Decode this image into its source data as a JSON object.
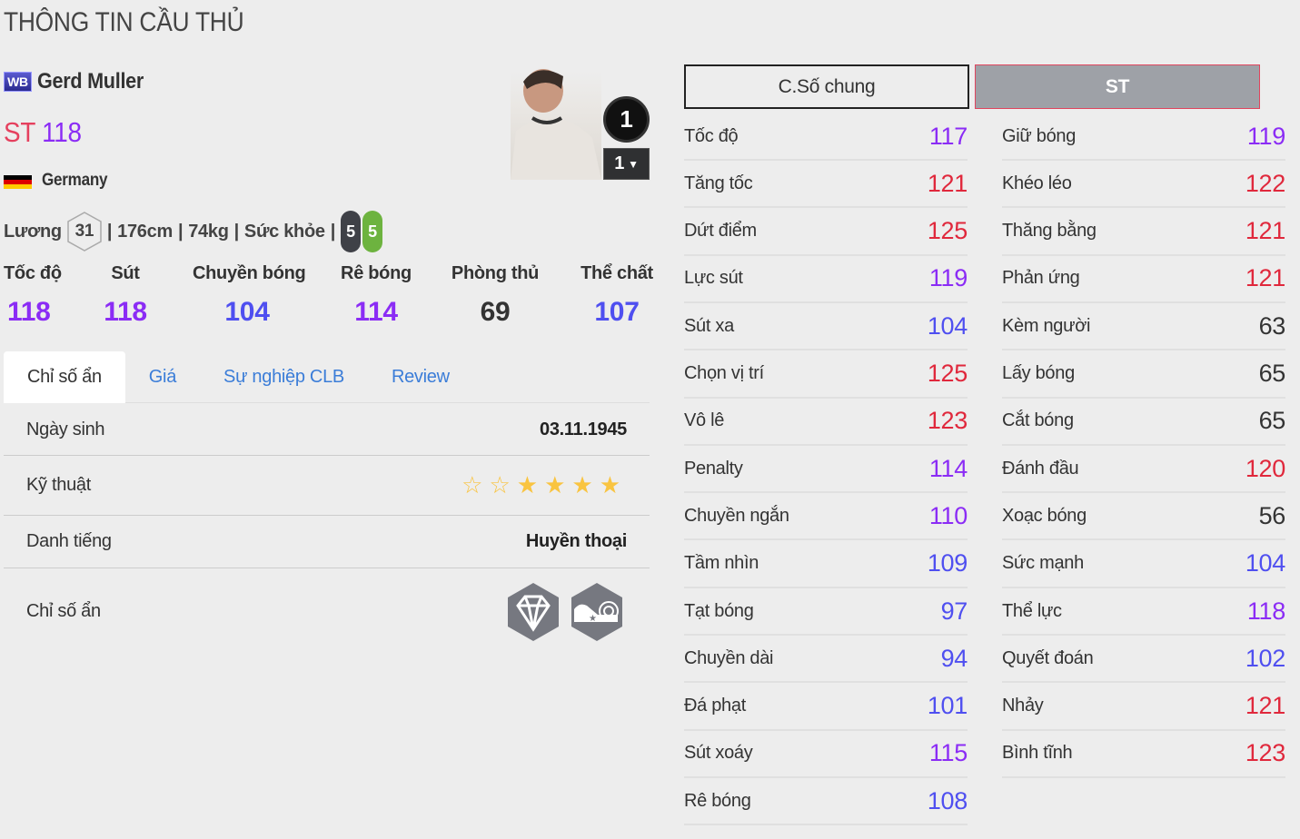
{
  "page_title": "THÔNG TIN CẦU THỦ",
  "player": {
    "season_badge": "WB",
    "name": "Gerd Muller",
    "position": "ST",
    "ovr": "118",
    "nation": "Germany",
    "salary_label": "Lương",
    "salary": "31",
    "height": "176cm",
    "weight": "74kg",
    "fitness_label": "Sức khỏe",
    "left_foot": "5",
    "right_foot": "5",
    "upgrade_level": "1",
    "level_select": "1"
  },
  "summary": [
    {
      "label": "Tốc độ",
      "value": "118",
      "color": "#8b2cf5"
    },
    {
      "label": "Sút",
      "value": "118",
      "color": "#8b2cf5"
    },
    {
      "label": "Chuyền bóng",
      "value": "104",
      "color": "#4f4ff0"
    },
    {
      "label": "Rê bóng",
      "value": "114",
      "color": "#8b2cf5"
    },
    {
      "label": "Phòng thủ",
      "value": "69",
      "color": "#333333"
    },
    {
      "label": "Thể chất",
      "value": "107",
      "color": "#4f4ff0"
    }
  ],
  "tabs": [
    {
      "label": "Chỉ số ẩn",
      "active": true
    },
    {
      "label": "Giá"
    },
    {
      "label": "Sự nghiệp CLB"
    },
    {
      "label": "Review"
    }
  ],
  "info": {
    "birth_label": "Ngày sinh",
    "birth": "03.11.1945",
    "skill_label": "Kỹ thuật",
    "skill_stars": 4,
    "skill_stars_max": 6,
    "fame_label": "Danh tiếng",
    "fame": "Huyền thoại",
    "traits_label": "Chỉ số ẩn",
    "traits": [
      "diamond-trait-icon",
      "boot-finesse-trait-icon"
    ]
  },
  "stat_tabs": {
    "general": "C.Số chung",
    "position": "ST"
  },
  "colors": {
    "red": "#e0283c",
    "purple": "#8b2cf5",
    "blue": "#4f4ff0",
    "gray": "#333333"
  },
  "stats_left": [
    {
      "label": "Tốc độ",
      "value": "117"
    },
    {
      "label": "Tăng tốc",
      "value": "121"
    },
    {
      "label": "Dứt điểm",
      "value": "125"
    },
    {
      "label": "Lực sút",
      "value": "119"
    },
    {
      "label": "Sút xa",
      "value": "104"
    },
    {
      "label": "Chọn vị trí",
      "value": "125"
    },
    {
      "label": "Vô lê",
      "value": "123"
    },
    {
      "label": "Penalty",
      "value": "114"
    },
    {
      "label": "Chuyền ngắn",
      "value": "110"
    },
    {
      "label": "Tầm nhìn",
      "value": "109"
    },
    {
      "label": "Tạt bóng",
      "value": "97"
    },
    {
      "label": "Chuyền dài",
      "value": "94"
    },
    {
      "label": "Đá phạt",
      "value": "101"
    },
    {
      "label": "Sút xoáy",
      "value": "115"
    },
    {
      "label": "Rê bóng",
      "value": "108"
    }
  ],
  "stats_right": [
    {
      "label": "Giữ bóng",
      "value": "119"
    },
    {
      "label": "Khéo léo",
      "value": "122"
    },
    {
      "label": "Thăng bằng",
      "value": "121"
    },
    {
      "label": "Phản ứng",
      "value": "121"
    },
    {
      "label": "Kèm người",
      "value": "63"
    },
    {
      "label": "Lấy bóng",
      "value": "65"
    },
    {
      "label": "Cắt bóng",
      "value": "65"
    },
    {
      "label": "Đánh đầu",
      "value": "120"
    },
    {
      "label": "Xoạc bóng",
      "value": "56"
    },
    {
      "label": "Sức mạnh",
      "value": "104"
    },
    {
      "label": "Thể lực",
      "value": "118"
    },
    {
      "label": "Quyết đoán",
      "value": "102"
    },
    {
      "label": "Nhảy",
      "value": "121"
    },
    {
      "label": "Bình tĩnh",
      "value": "123"
    }
  ]
}
